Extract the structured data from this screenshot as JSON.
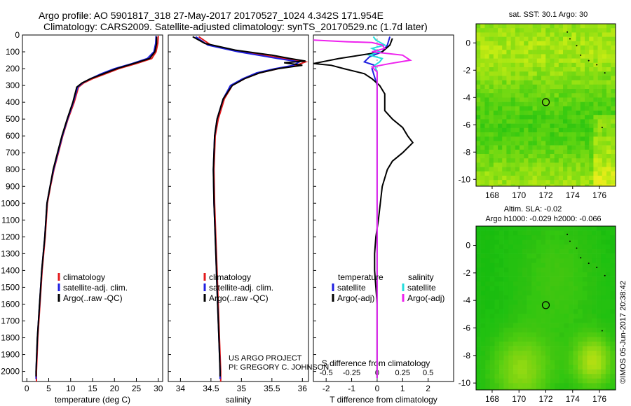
{
  "header": {
    "line1": "Argo profile: AO 5901817_318 27-May-2017 20170527_1024 4.342S 171.954E",
    "line2": "Climatology: CARS2009. Satellite-adjusted climatology: synTS_20170529.nc (1.7d later)"
  },
  "colors": {
    "climatology": "#e31a1c",
    "satellite": "#1f1fe0",
    "argo": "#000000",
    "sal_satellite": "#22dddd",
    "sal_argo": "#ee22ee"
  },
  "footer": {
    "project": "US ARGO PROJECT",
    "pi": "PI: GREGORY C. JOHNSON",
    "imos": "©IMOS 05-Jun-2017 20:38:42"
  },
  "chart_data": [
    {
      "id": "temperature",
      "type": "line",
      "xlabel": "temperature (deg C)",
      "ylabel": "",
      "xlim": [
        -1,
        31
      ],
      "ylim": [
        2060,
        0
      ],
      "xticks": [
        "0",
        "5",
        "10",
        "15",
        "20",
        "25",
        "30"
      ],
      "yticks": [
        "0",
        "100",
        "200",
        "300",
        "400",
        "500",
        "600",
        "700",
        "800",
        "900",
        "1000",
        "1100",
        "1200",
        "1300",
        "1400",
        "1500",
        "1600",
        "1700",
        "1800",
        "1900",
        "2000"
      ],
      "legend": [
        "climatology",
        "satellite-adj. clim.",
        "Argo(..raw -QC)"
      ],
      "series": [
        {
          "name": "climatology",
          "color": "climatology",
          "points": [
            [
              30.0,
              5
            ],
            [
              29.9,
              50
            ],
            [
              29.5,
              100
            ],
            [
              28.5,
              140
            ],
            [
              25,
              170
            ],
            [
              21,
              200
            ],
            [
              18,
              230
            ],
            [
              15,
              260
            ],
            [
              13,
              285
            ],
            [
              11.8,
              310
            ],
            [
              10.8,
              400
            ],
            [
              9.4,
              500
            ],
            [
              8.2,
              600
            ],
            [
              7.2,
              700
            ],
            [
              6.2,
              800
            ],
            [
              5.4,
              900
            ],
            [
              4.7,
              1000
            ],
            [
              4.2,
              1200
            ],
            [
              3.5,
              1400
            ],
            [
              3,
              1600
            ],
            [
              2.5,
              1800
            ],
            [
              2.2,
              2000
            ],
            [
              2.2,
              2060
            ]
          ]
        },
        {
          "name": "satellite",
          "color": "satellite",
          "points": [
            [
              29.5,
              5
            ],
            [
              29.4,
              50
            ],
            [
              29,
              100
            ],
            [
              27.5,
              140
            ],
            [
              24,
              170
            ],
            [
              20,
              200
            ],
            [
              17,
              230
            ],
            [
              14.5,
              260
            ],
            [
              12.7,
              285
            ],
            [
              11.6,
              310
            ],
            [
              10.6,
              400
            ],
            [
              9.3,
              500
            ],
            [
              8.1,
              600
            ],
            [
              7.1,
              700
            ],
            [
              6.1,
              800
            ],
            [
              5.3,
              900
            ],
            [
              4.6,
              1000
            ],
            [
              4.1,
              1200
            ],
            [
              3.4,
              1400
            ],
            [
              2.9,
              1600
            ],
            [
              2.4,
              1800
            ],
            [
              2.1,
              2000
            ],
            [
              2.1,
              2045
            ]
          ]
        },
        {
          "name": "argo",
          "color": "argo",
          "points": [
            [
              29.6,
              10
            ],
            [
              29.6,
              50
            ],
            [
              29.2,
              100
            ],
            [
              28,
              140
            ],
            [
              25,
              165
            ],
            [
              20.5,
              200
            ],
            [
              17.5,
              230
            ],
            [
              14.5,
              260
            ],
            [
              12.6,
              285
            ],
            [
              11.4,
              310
            ],
            [
              10.5,
              400
            ],
            [
              9.2,
              500
            ],
            [
              8,
              600
            ],
            [
              7,
              700
            ],
            [
              6,
              800
            ],
            [
              5.3,
              900
            ],
            [
              4.6,
              1000
            ],
            [
              4.1,
              1200
            ],
            [
              3.4,
              1400
            ],
            [
              2.9,
              1600
            ],
            [
              2.4,
              1800
            ],
            [
              2.1,
              2000
            ],
            [
              2.1,
              2030
            ]
          ]
        }
      ]
    },
    {
      "id": "salinity",
      "type": "line",
      "xlabel": "salinity",
      "ylabel": "",
      "xlim": [
        33.8,
        36.1
      ],
      "ylim": [
        2060,
        0
      ],
      "xticks": [
        "34",
        "34.5",
        "35",
        "35.5",
        "36"
      ],
      "legend": [
        "climatology",
        "satellite-adj. clim.",
        "Argo(..raw -QC)"
      ],
      "series": [
        {
          "name": "climatology",
          "color": "climatology",
          "points": [
            [
              34.3,
              10
            ],
            [
              34.5,
              60
            ],
            [
              35,
              100
            ],
            [
              35.7,
              140
            ],
            [
              36.05,
              160
            ],
            [
              35.9,
              180
            ],
            [
              35.6,
              200
            ],
            [
              35.3,
              225
            ],
            [
              35.05,
              260
            ],
            [
              34.85,
              300
            ],
            [
              34.72,
              380
            ],
            [
              34.62,
              500
            ],
            [
              34.57,
              600
            ],
            [
              34.55,
              800
            ],
            [
              34.56,
              1000
            ],
            [
              34.58,
              1200
            ],
            [
              34.6,
              1400
            ],
            [
              34.62,
              1600
            ],
            [
              34.64,
              1800
            ],
            [
              34.66,
              2000
            ],
            [
              34.66,
              2060
            ]
          ]
        },
        {
          "name": "satellite",
          "color": "satellite",
          "points": [
            [
              34.25,
              10
            ],
            [
              34.45,
              60
            ],
            [
              34.95,
              100
            ],
            [
              35.6,
              140
            ],
            [
              35.95,
              160
            ],
            [
              35.85,
              180
            ],
            [
              35.55,
              200
            ],
            [
              35.25,
              225
            ],
            [
              35.02,
              260
            ],
            [
              34.82,
              300
            ],
            [
              34.7,
              380
            ],
            [
              34.6,
              500
            ],
            [
              34.56,
              600
            ],
            [
              34.54,
              800
            ],
            [
              34.55,
              1000
            ],
            [
              34.57,
              1200
            ],
            [
              34.59,
              1400
            ],
            [
              34.61,
              1600
            ],
            [
              34.63,
              1800
            ],
            [
              34.65,
              2000
            ],
            [
              34.65,
              2045
            ]
          ]
        },
        {
          "name": "argo",
          "color": "argo",
          "points": [
            [
              34.2,
              10
            ],
            [
              34.4,
              50
            ],
            [
              34.9,
              90
            ],
            [
              35.5,
              120
            ],
            [
              35.8,
              140
            ],
            [
              36.05,
              155
            ],
            [
              35.7,
              165
            ],
            [
              36.0,
              180
            ],
            [
              35.6,
              200
            ],
            [
              35.3,
              225
            ],
            [
              35.05,
              260
            ],
            [
              34.85,
              300
            ],
            [
              34.7,
              380
            ],
            [
              34.6,
              500
            ],
            [
              34.56,
              600
            ],
            [
              34.54,
              800
            ],
            [
              34.55,
              1000
            ],
            [
              34.57,
              1200
            ],
            [
              34.59,
              1400
            ],
            [
              34.61,
              1600
            ],
            [
              34.63,
              1800
            ],
            [
              34.65,
              2000
            ],
            [
              34.65,
              2030
            ]
          ]
        }
      ]
    },
    {
      "id": "difference",
      "type": "line",
      "xlabel": "T difference from climatology",
      "xlabel2": "S difference from climatology",
      "xlim": [
        -2.5,
        3
      ],
      "ylim": [
        2060,
        0
      ],
      "xticks": [
        "-2",
        "-1",
        "0",
        "1",
        "2"
      ],
      "xticks_s": [
        "-0.5",
        "-0.25",
        "0",
        "0.25",
        "0.5"
      ],
      "legend_t_title": "temperature",
      "legend_s_title": "salinity",
      "legend": [
        "satellite",
        "Argo(-adj)",
        "satellite",
        "Argo(-adj)"
      ],
      "series": [
        {
          "name": "T satellite",
          "color": "satellite",
          "points": [
            [
              0.5,
              10
            ],
            [
              0.4,
              60
            ],
            [
              0.2,
              100
            ],
            [
              -0.3,
              130
            ],
            [
              -0.5,
              160
            ],
            [
              -0.1,
              180
            ],
            [
              -0.2,
              200
            ],
            [
              -0.1,
              250
            ],
            [
              0,
              300
            ],
            [
              0,
              400
            ],
            [
              0,
              600
            ],
            [
              0,
              800
            ],
            [
              0,
              1000
            ],
            [
              0,
              1400
            ],
            [
              0,
              1800
            ],
            [
              0,
              2040
            ]
          ]
        },
        {
          "name": "T argo",
          "color": "argo",
          "points": [
            [
              0.6,
              20
            ],
            [
              0.5,
              60
            ],
            [
              0.2,
              100
            ],
            [
              -1.5,
              140
            ],
            [
              -2.5,
              170
            ],
            [
              -1.8,
              180
            ],
            [
              -1.3,
              200
            ],
            [
              -0.5,
              230
            ],
            [
              -0.2,
              260
            ],
            [
              0.1,
              300
            ],
            [
              0.3,
              350
            ],
            [
              0.3,
              450
            ],
            [
              0.6,
              500
            ],
            [
              1.0,
              550
            ],
            [
              1.2,
              600
            ],
            [
              1.4,
              640
            ],
            [
              1.0,
              700
            ],
            [
              0.6,
              750
            ],
            [
              0.4,
              800
            ],
            [
              0.2,
              900
            ],
            [
              0.05,
              1100
            ],
            [
              -0.05,
              1200
            ],
            [
              -0.1,
              1300
            ],
            [
              -0.1,
              1400
            ],
            [
              -0.05,
              1500
            ],
            [
              0,
              1600
            ],
            [
              0,
              1800
            ],
            [
              0,
              2040
            ]
          ]
        },
        {
          "name": "S satellite",
          "color": "sal_satellite",
          "points": [
            [
              -0.15,
              10
            ],
            [
              -0.05,
              30
            ],
            [
              0.3,
              60
            ],
            [
              -0.2,
              80
            ],
            [
              0.1,
              100
            ],
            [
              -0.3,
              120
            ],
            [
              0.2,
              140
            ],
            [
              0.1,
              160
            ],
            [
              -0.1,
              180
            ],
            [
              0,
              220
            ],
            [
              0,
              300
            ],
            [
              0,
              400
            ],
            [
              0,
              600
            ],
            [
              0,
              900
            ],
            [
              0,
              1200
            ],
            [
              0,
              1600
            ],
            [
              0,
              2040
            ]
          ]
        },
        {
          "name": "S argo",
          "color": "sal_argo",
          "points": [
            [
              -2.5,
              30
            ],
            [
              -1.2,
              40
            ],
            [
              -0.2,
              45
            ],
            [
              0.2,
              60
            ],
            [
              0.3,
              80
            ],
            [
              -0.2,
              100
            ],
            [
              1.0,
              120
            ],
            [
              1.3,
              150
            ],
            [
              0.5,
              170
            ],
            [
              -0.2,
              190
            ],
            [
              0,
              220
            ],
            [
              0,
              300
            ],
            [
              0,
              500
            ],
            [
              0,
              800
            ],
            [
              0,
              1200
            ],
            [
              0,
              1600
            ],
            [
              0,
              2040
            ]
          ]
        }
      ]
    },
    {
      "id": "sst_map",
      "type": "heatmap",
      "title": "sat. SST: 30.1  Argo: 30",
      "xlim": [
        166.8,
        177.2
      ],
      "ylim": [
        -10.5,
        1.4
      ],
      "xticks": [
        "168",
        "170",
        "172",
        "174",
        "176"
      ],
      "yticks": [
        "0",
        "-2",
        "-4",
        "-6",
        "-8",
        "-10"
      ],
      "marker": [
        172,
        -4.34
      ]
    },
    {
      "id": "sla_map",
      "type": "heatmap",
      "title": "Altim. SLA: -0.02",
      "subtitle": "Argo h1000: -0.029  h2000: -0.066",
      "xlim": [
        166.8,
        177.2
      ],
      "ylim": [
        -10.5,
        1.4
      ],
      "xticks": [
        "168",
        "170",
        "172",
        "174",
        "176"
      ],
      "yticks": [
        "0",
        "-2",
        "-4",
        "-6",
        "-8",
        "-10"
      ],
      "marker": [
        172,
        -4.34
      ]
    }
  ]
}
